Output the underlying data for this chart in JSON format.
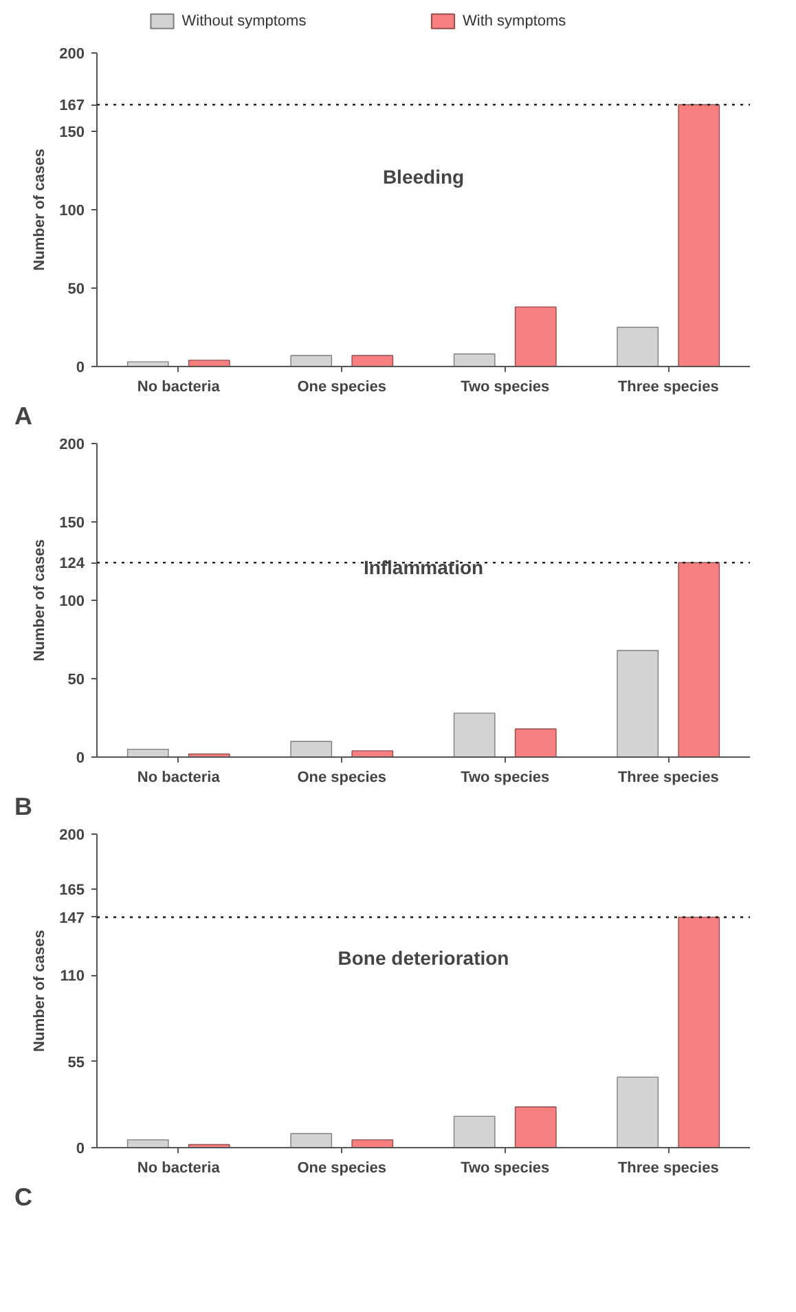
{
  "chart_data": [
    {
      "type": "bar",
      "title": "Bleeding",
      "ylabel": "Number of cases",
      "annotations": [
        "A"
      ],
      "legend": "top",
      "grid": false,
      "categories": [
        "No bacteria",
        "One species",
        "Two species",
        "Three species"
      ],
      "series": [
        {
          "name": "Without symptoms",
          "color": "#d3d3d3",
          "values": [
            3,
            7,
            8,
            25
          ]
        },
        {
          "name": "With symptoms",
          "color": "#f87f7f",
          "values": [
            4,
            7,
            38,
            167
          ]
        }
      ],
      "ylim": [
        0,
        200
      ],
      "yticks": [
        0,
        50,
        100,
        150,
        167,
        200
      ],
      "ref_lines": [
        {
          "axis": "y",
          "value": 167,
          "line_style": "dotted"
        }
      ]
    },
    {
      "type": "bar",
      "title": "Inflammation",
      "ylabel": "Number of cases",
      "annotations": [
        "B"
      ],
      "grid": false,
      "categories": [
        "No bacteria",
        "One species",
        "Two species",
        "Three species"
      ],
      "series": [
        {
          "color": "#d3d3d3",
          "values": [
            5,
            10,
            28,
            68
          ]
        },
        {
          "color": "#f87f7f",
          "values": [
            2,
            4,
            18,
            124
          ]
        }
      ],
      "ylim": [
        0,
        200
      ],
      "yticks": [
        0,
        50,
        100,
        124,
        150,
        200
      ],
      "ref_lines": [
        {
          "axis": "y",
          "value": 124,
          "line_style": "dotted"
        }
      ]
    },
    {
      "type": "bar",
      "title": "Bone deterioration",
      "ylabel": "Number of cases",
      "annotations": [
        "C"
      ],
      "grid": false,
      "categories": [
        "No bacteria",
        "One species",
        "Two species",
        "Three species"
      ],
      "series": [
        {
          "color": "#d3d3d3",
          "values": [
            5,
            9,
            20,
            45
          ]
        },
        {
          "color": "#f87f7f",
          "values": [
            2,
            5,
            26,
            147
          ]
        }
      ],
      "ylim": [
        0,
        200
      ],
      "yticks": [
        0,
        55,
        110,
        147,
        165,
        200
      ],
      "ref_lines": [
        {
          "axis": "y",
          "value": 147,
          "line_style": "dotted"
        }
      ]
    }
  ]
}
